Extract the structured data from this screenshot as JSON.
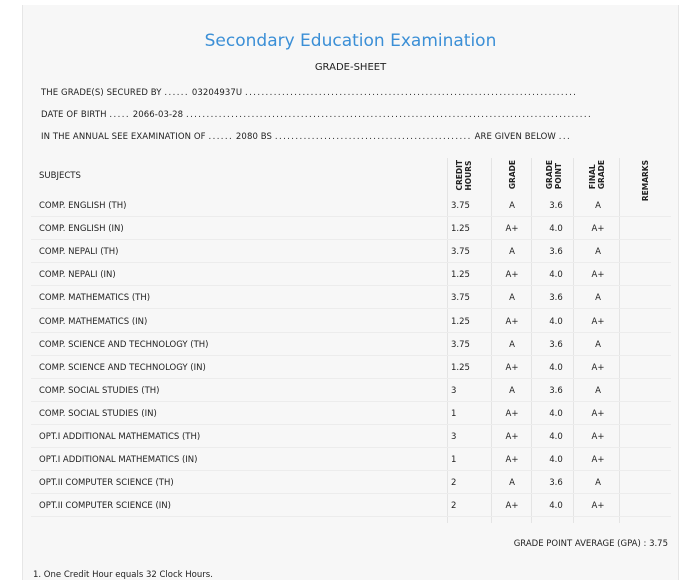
{
  "header": {
    "title": "Secondary Education Examination",
    "subtitle": "GRADE-SHEET",
    "line1_prefix": "THE GRADE(S) SECURED BY",
    "line1_value": "03204937U",
    "line2_prefix": "DATE OF BIRTH",
    "line2_value": "2066-03-28",
    "line3_prefix": "IN THE ANNUAL SEE EXAMINATION OF",
    "line3_value": "2080 BS",
    "line3_suffix": "ARE GIVEN BELOW"
  },
  "table": {
    "subjects_label": "SUBJECTS",
    "col_credit": "CREDIT\nHOURS",
    "col_grade": "GRADE",
    "col_point": "GRADE\nPOINT",
    "col_final": "FINAL\nGRADE",
    "col_remarks": "REMARKS",
    "rows": [
      {
        "subject": "COMP. ENGLISH (TH)",
        "credit": "3.75",
        "grade": "A",
        "point": "3.6",
        "final": "A"
      },
      {
        "subject": "COMP. ENGLISH (IN)",
        "credit": "1.25",
        "grade": "A+",
        "point": "4.0",
        "final": "A+"
      },
      {
        "subject": "COMP. NEPALI (TH)",
        "credit": "3.75",
        "grade": "A",
        "point": "3.6",
        "final": "A"
      },
      {
        "subject": "COMP. NEPALI (IN)",
        "credit": "1.25",
        "grade": "A+",
        "point": "4.0",
        "final": "A+"
      },
      {
        "subject": "COMP. MATHEMATICS (TH)",
        "credit": "3.75",
        "grade": "A",
        "point": "3.6",
        "final": "A"
      },
      {
        "subject": "COMP. MATHEMATICS (IN)",
        "credit": "1.25",
        "grade": "A+",
        "point": "4.0",
        "final": "A+"
      },
      {
        "subject": "COMP. SCIENCE AND TECHNOLOGY (TH)",
        "credit": "3.75",
        "grade": "A",
        "point": "3.6",
        "final": "A"
      },
      {
        "subject": "COMP. SCIENCE AND TECHNOLOGY (IN)",
        "credit": "1.25",
        "grade": "A+",
        "point": "4.0",
        "final": "A+"
      },
      {
        "subject": "COMP. SOCIAL STUDIES (TH)",
        "credit": "3",
        "grade": "A",
        "point": "3.6",
        "final": "A"
      },
      {
        "subject": "COMP. SOCIAL STUDIES (IN)",
        "credit": "1",
        "grade": "A+",
        "point": "4.0",
        "final": "A+"
      },
      {
        "subject": "OPT.I ADDITIONAL MATHEMATICS (TH)",
        "credit": "3",
        "grade": "A+",
        "point": "4.0",
        "final": "A+"
      },
      {
        "subject": "OPT.I ADDITIONAL MATHEMATICS (IN)",
        "credit": "1",
        "grade": "A+",
        "point": "4.0",
        "final": "A+"
      },
      {
        "subject": "OPT.II COMPUTER SCIENCE (TH)",
        "credit": "2",
        "grade": "A",
        "point": "3.6",
        "final": "A"
      },
      {
        "subject": "OPT.II COMPUTER SCIENCE (IN)",
        "credit": "2",
        "grade": "A+",
        "point": "4.0",
        "final": "A+"
      }
    ]
  },
  "summary": {
    "gpa_text": "GRADE POINT AVERAGE (GPA) : 3.75"
  },
  "footnotes": {
    "note1": "1. One Credit Hour equals 32 Clock Hours."
  }
}
